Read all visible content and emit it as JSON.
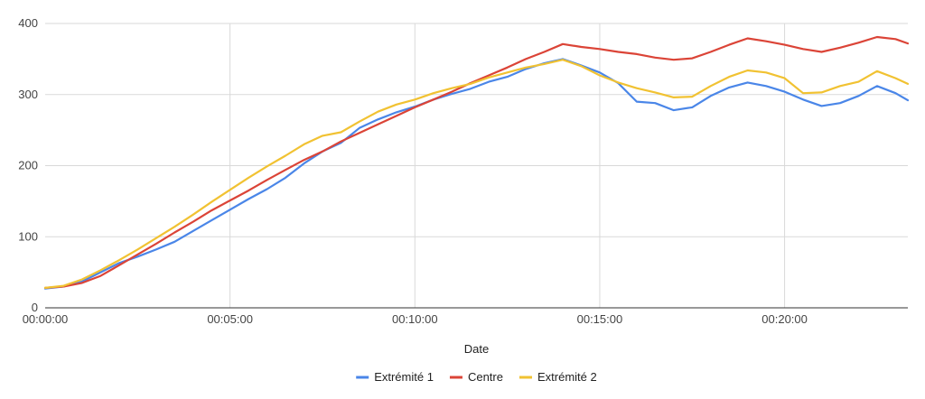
{
  "chart_data": {
    "type": "line",
    "xlabel": "Date",
    "ylabel": "",
    "xlim": [
      "00:00:00",
      "00:23:20"
    ],
    "ylim": [
      0,
      400
    ],
    "grid": true,
    "legend_position": "bottom",
    "x_ticks": [
      "00:00:00",
      "00:05:00",
      "00:10:00",
      "00:15:00",
      "00:20:00"
    ],
    "y_ticks": [
      "0",
      "100",
      "200",
      "300",
      "400"
    ],
    "colors": {
      "Extrémité 1": "#4a86e8",
      "Centre": "#db4437",
      "Extrémité 2": "#f1c232",
      "grid": "#d9d9d9",
      "axis": "#333333"
    },
    "x": [
      "00:00:00",
      "00:00:30",
      "00:01:00",
      "00:01:30",
      "00:02:00",
      "00:02:30",
      "00:03:00",
      "00:03:30",
      "00:04:00",
      "00:04:30",
      "00:05:00",
      "00:05:30",
      "00:06:00",
      "00:06:30",
      "00:07:00",
      "00:07:30",
      "00:08:00",
      "00:08:30",
      "00:09:00",
      "00:09:30",
      "00:10:00",
      "00:10:30",
      "00:11:00",
      "00:11:30",
      "00:12:00",
      "00:12:30",
      "00:13:00",
      "00:13:30",
      "00:14:00",
      "00:14:30",
      "00:15:00",
      "00:15:30",
      "00:16:00",
      "00:16:30",
      "00:17:00",
      "00:17:30",
      "00:18:00",
      "00:18:30",
      "00:19:00",
      "00:19:30",
      "00:20:00",
      "00:20:30",
      "00:21:00",
      "00:21:30",
      "00:22:00",
      "00:22:30",
      "00:23:00",
      "00:23:20"
    ],
    "series": [
      {
        "name": "Extrémité 1",
        "values": [
          27,
          30,
          37,
          50,
          63,
          72,
          82,
          93,
          108,
          123,
          138,
          153,
          167,
          183,
          203,
          220,
          232,
          253,
          265,
          275,
          283,
          293,
          301,
          308,
          318,
          325,
          336,
          344,
          350,
          341,
          331,
          316,
          290,
          288,
          278,
          282,
          298,
          310,
          317,
          312,
          304,
          293,
          284,
          288,
          298,
          312,
          302,
          292
        ]
      },
      {
        "name": "Centre",
        "values": [
          28,
          30,
          35,
          45,
          60,
          75,
          90,
          106,
          121,
          137,
          151,
          165,
          180,
          194,
          208,
          220,
          234,
          246,
          258,
          270,
          282,
          293,
          304,
          316,
          327,
          338,
          350,
          360,
          371,
          367,
          364,
          360,
          357,
          352,
          349,
          351,
          360,
          370,
          379,
          375,
          370,
          364,
          360,
          366,
          373,
          381,
          378,
          372
        ]
      },
      {
        "name": "Extrémité 2",
        "values": [
          28,
          31,
          40,
          53,
          67,
          82,
          98,
          114,
          131,
          149,
          166,
          183,
          199,
          214,
          230,
          242,
          247,
          262,
          276,
          286,
          293,
          302,
          309,
          315,
          324,
          331,
          338,
          343,
          349,
          340,
          327,
          317,
          309,
          303,
          296,
          297,
          312,
          325,
          334,
          331,
          323,
          302,
          303,
          312,
          318,
          333,
          323,
          315
        ]
      }
    ]
  }
}
